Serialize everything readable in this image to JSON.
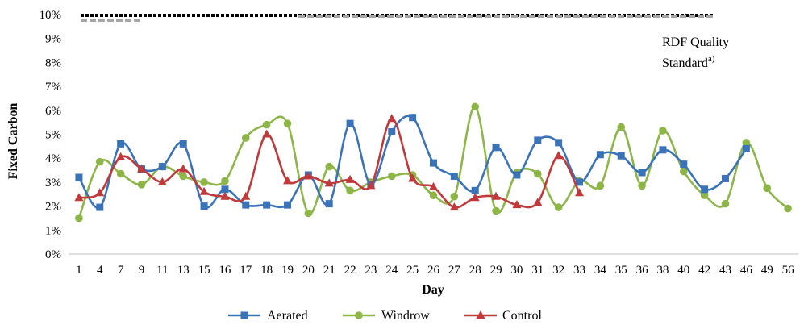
{
  "chart_data": {
    "type": "line",
    "xlabel": "Day",
    "ylabel": "Fixed Carbon",
    "ylim": [
      0,
      10
    ],
    "ytick_suffix": "%",
    "yticks": [
      0,
      1,
      2,
      3,
      4,
      5,
      6,
      7,
      8,
      9,
      10
    ],
    "categories": [
      "1",
      "4",
      "7",
      "9",
      "11",
      "13",
      "15",
      "16",
      "17",
      "18",
      "19",
      "20",
      "21",
      "22",
      "23",
      "24",
      "25",
      "26",
      "27",
      "28",
      "29",
      "30",
      "31",
      "32",
      "33",
      "34",
      "35",
      "36",
      "38",
      "40",
      "42",
      "43",
      "46",
      "49",
      "56"
    ],
    "grid": false,
    "legend_position": "bottom",
    "annotation": {
      "text": "RDF Quality Standard",
      "line1": "RDF Quality",
      "line2": "Standard",
      "superscript": "a)",
      "value": 10
    },
    "series": [
      {
        "name": "Aerated",
        "color": "#3B73B9",
        "marker": "square",
        "values": [
          3.2,
          1.95,
          4.6,
          3.55,
          3.65,
          4.6,
          2.0,
          2.7,
          2.05,
          2.05,
          2.05,
          3.3,
          2.1,
          5.45,
          2.9,
          5.1,
          5.7,
          3.8,
          3.25,
          2.65,
          4.45,
          3.3,
          4.75,
          4.65,
          3.0,
          4.15,
          4.1,
          3.4,
          4.35,
          3.75,
          2.7,
          3.15,
          4.4,
          null,
          null
        ]
      },
      {
        "name": "Windrow",
        "color": "#8DB547",
        "marker": "circle",
        "values": [
          1.5,
          3.85,
          3.35,
          2.9,
          3.65,
          3.25,
          3.0,
          3.05,
          4.85,
          5.4,
          5.45,
          1.7,
          3.65,
          2.65,
          3.0,
          3.25,
          3.3,
          2.45,
          2.4,
          6.15,
          1.8,
          3.4,
          3.35,
          1.95,
          3.05,
          2.85,
          5.3,
          2.85,
          5.15,
          3.45,
          2.45,
          2.1,
          4.65,
          2.75,
          1.9
        ]
      },
      {
        "name": "Control",
        "color": "#C0393B",
        "marker": "triangle",
        "values": [
          2.35,
          2.55,
          4.05,
          3.55,
          3.0,
          3.55,
          2.6,
          2.4,
          2.4,
          5.0,
          3.05,
          3.25,
          2.95,
          3.1,
          2.85,
          5.65,
          3.15,
          2.8,
          1.95,
          2.35,
          2.4,
          2.05,
          2.15,
          4.1,
          2.55,
          null,
          null,
          null,
          null,
          null,
          null,
          null,
          null,
          null,
          null
        ]
      }
    ],
    "reference_lines": [
      {
        "color": "#000000",
        "style": "dotted-thick",
        "value": 10
      },
      {
        "color": "#A6A6A6",
        "style": "dashed",
        "value": 9.85
      }
    ]
  }
}
